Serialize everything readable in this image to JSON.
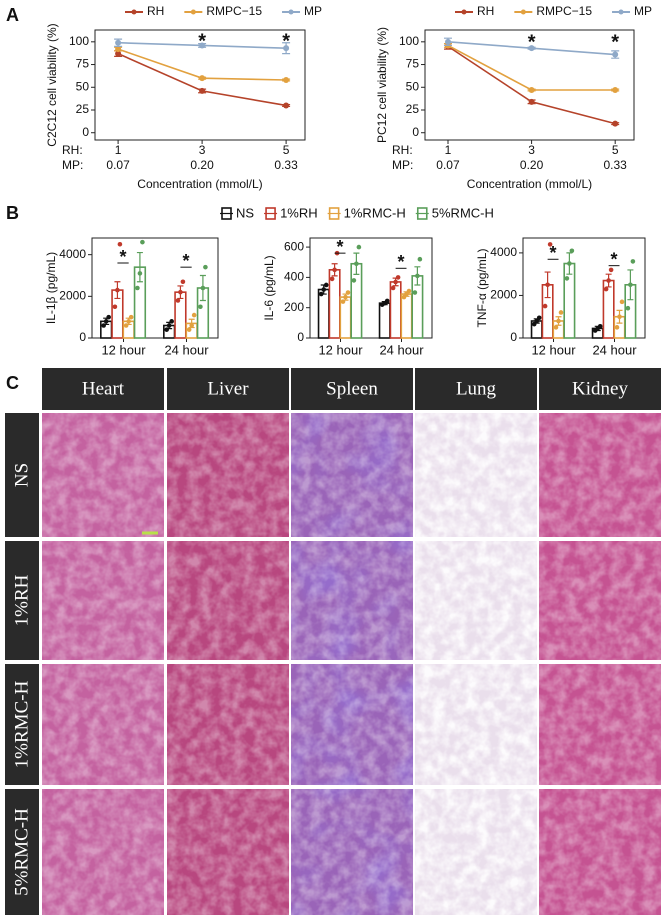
{
  "panel_labels": [
    "A",
    "B",
    "C"
  ],
  "chart_data": [
    {
      "type": "line",
      "ylabel": "C2C12 cell viability (%)",
      "xlabel": "Concentration (mmol/L)",
      "row_labels": [
        "RH:",
        "MP:"
      ],
      "x": [
        1,
        3,
        5
      ],
      "xticks": [
        1,
        3,
        5
      ],
      "mp_ticks": [
        "0.07",
        "0.20",
        "0.33"
      ],
      "xlim": [
        0.45,
        5.45
      ],
      "ylim": [
        -8,
        113
      ],
      "yticks": [
        0,
        25,
        50,
        75,
        100
      ],
      "series": [
        {
          "name": "RH",
          "color": "#b5432a",
          "values": [
            87,
            46,
            30
          ],
          "errors": [
            3,
            2,
            1
          ]
        },
        {
          "name": "RMPC−15",
          "color": "#e2a13f",
          "values": [
            92,
            60,
            58
          ],
          "errors": [
            2,
            1,
            1
          ]
        },
        {
          "name": "MP",
          "color": "#8fa9c8",
          "values": [
            99,
            96,
            93
          ],
          "errors": [
            4,
            2,
            6
          ]
        }
      ],
      "annotations": [
        {
          "x": 3,
          "y": 104,
          "text": "*"
        },
        {
          "x": 5,
          "y": 104,
          "text": "*"
        }
      ]
    },
    {
      "type": "line",
      "ylabel": "PC12 cell viability (%)",
      "xlabel": "Concentration (mmol/L)",
      "row_labels": [
        "RH:",
        "MP:"
      ],
      "x": [
        1,
        3,
        5
      ],
      "xticks": [
        1,
        3,
        5
      ],
      "mp_ticks": [
        "0.07",
        "0.20",
        "0.33"
      ],
      "xlim": [
        0.45,
        5.45
      ],
      "ylim": [
        -8,
        113
      ],
      "yticks": [
        0,
        25,
        50,
        75,
        100
      ],
      "series": [
        {
          "name": "RH",
          "color": "#b5432a",
          "values": [
            95,
            34,
            10
          ],
          "errors": [
            3,
            2,
            1
          ]
        },
        {
          "name": "RMPC−15",
          "color": "#e2a13f",
          "values": [
            96,
            47,
            47
          ],
          "errors": [
            2,
            1,
            1
          ]
        },
        {
          "name": "MP",
          "color": "#8fa9c8",
          "values": [
            100,
            93,
            86
          ],
          "errors": [
            4,
            1,
            4
          ]
        }
      ],
      "annotations": [
        {
          "x": 3,
          "y": 103,
          "text": "*"
        },
        {
          "x": 5,
          "y": 103,
          "text": "*"
        }
      ]
    },
    {
      "type": "bar",
      "ylabel": "IL-1β (pg/mL)",
      "categories": [
        "12 hour",
        "24 hour"
      ],
      "ylim": [
        0,
        4800
      ],
      "yticks": [
        0,
        2000,
        4000
      ],
      "series": [
        {
          "name": "NS",
          "color": "#111111",
          "values": [
            800,
            600
          ],
          "errors": [
            150,
            150
          ],
          "points": [
            [
              600,
              800,
              1000
            ],
            [
              400,
              600,
              800
            ]
          ]
        },
        {
          "name": "1%RH",
          "color": "#c0392b",
          "values": [
            2300,
            2200
          ],
          "errors": [
            400,
            300
          ],
          "points": [
            [
              1500,
              2300,
              4500
            ],
            [
              1800,
              2200,
              2700
            ]
          ]
        },
        {
          "name": "1%RMC-H",
          "color": "#e2a13f",
          "values": [
            800,
            700
          ],
          "errors": [
            150,
            200
          ],
          "points": [
            [
              600,
              800,
              1000
            ],
            [
              400,
              600,
              1100
            ]
          ]
        },
        {
          "name": "5%RMC-H",
          "color": "#5a9e5a",
          "values": [
            3400,
            2400
          ],
          "errors": [
            700,
            600
          ],
          "points": [
            [
              2400,
              3100,
              4600
            ],
            [
              1500,
              2400,
              3400
            ]
          ]
        }
      ],
      "annotations": [
        {
          "category": 0,
          "y": 3600,
          "text": "*"
        },
        {
          "category": 1,
          "y": 3400,
          "text": "*"
        }
      ]
    },
    {
      "type": "bar",
      "ylabel": "IL-6 (pg/mL)",
      "categories": [
        "12 hour",
        "24 hour"
      ],
      "ylim": [
        0,
        660
      ],
      "yticks": [
        0,
        200,
        400,
        600
      ],
      "series": [
        {
          "values": [
            320,
            230
          ],
          "errors": [
            30,
            10
          ],
          "points": [
            [
              290,
              320,
              350
            ],
            [
              220,
              230,
              245
            ]
          ]
        },
        {
          "values": [
            450,
            370
          ],
          "errors": [
            40,
            25
          ],
          "points": [
            [
              390,
              450,
              560
            ],
            [
              330,
              370,
              400
            ]
          ]
        },
        {
          "values": [
            270,
            290
          ],
          "errors": [
            20,
            15
          ],
          "points": [
            [
              240,
              270,
              300
            ],
            [
              270,
              290,
              310
            ]
          ]
        },
        {
          "values": [
            490,
            410
          ],
          "errors": [
            70,
            60
          ],
          "points": [
            [
              380,
              490,
              600
            ],
            [
              300,
              410,
              520
            ]
          ]
        }
      ],
      "annotations": [
        {
          "category": 0,
          "y": 560,
          "text": "*"
        },
        {
          "category": 1,
          "y": 460,
          "text": "*"
        }
      ]
    },
    {
      "type": "bar",
      "ylabel": "TNF-α (pg/mL)",
      "categories": [
        "12 hour",
        "24 hour"
      ],
      "ylim": [
        0,
        4700
      ],
      "yticks": [
        0,
        2000,
        4000
      ],
      "series": [
        {
          "values": [
            800,
            450
          ],
          "errors": [
            100,
            100
          ],
          "points": [
            [
              650,
              800,
              950
            ],
            [
              350,
              450,
              550
            ]
          ]
        },
        {
          "values": [
            2500,
            2700
          ],
          "errors": [
            600,
            300
          ],
          "points": [
            [
              1500,
              2500,
              4400
            ],
            [
              2300,
              2700,
              3200
            ]
          ]
        },
        {
          "values": [
            800,
            1000
          ],
          "errors": [
            200,
            300
          ],
          "points": [
            [
              500,
              800,
              1200
            ],
            [
              500,
              1000,
              1700
            ]
          ]
        },
        {
          "values": [
            3500,
            2500
          ],
          "errors": [
            500,
            700
          ],
          "points": [
            [
              2800,
              3500,
              4100
            ],
            [
              1400,
              2500,
              3600
            ]
          ]
        }
      ],
      "annotations": [
        {
          "category": 0,
          "y": 3700,
          "text": "*"
        },
        {
          "category": 1,
          "y": 3400,
          "text": "*"
        }
      ]
    }
  ],
  "histology": {
    "columns": [
      "Heart",
      "Liver",
      "Spleen",
      "Lung",
      "Kidney"
    ],
    "rows": [
      "NS",
      "1%RH",
      "1%RMC-H",
      "5%RMC-H"
    ]
  }
}
